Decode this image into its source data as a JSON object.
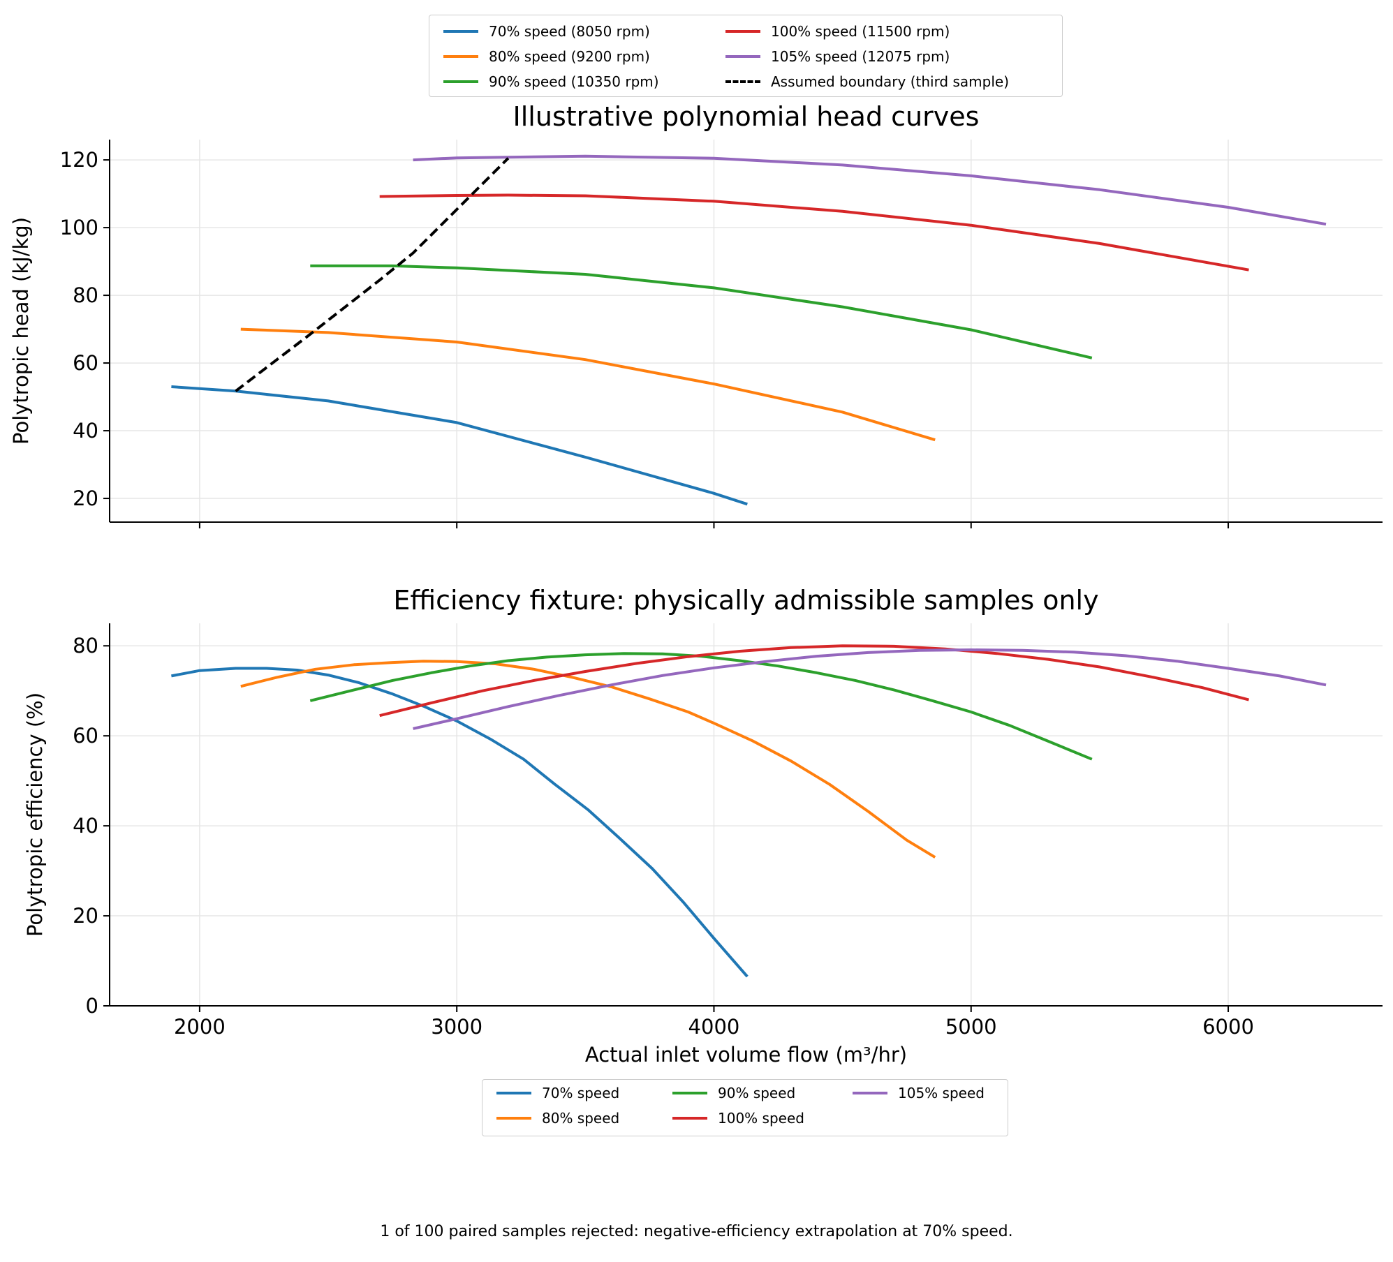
{
  "chart_data": [
    {
      "type": "line",
      "title": "Illustrative polynomial head curves",
      "xlabel": "",
      "ylabel": "Polytropic head (kJ/kg)",
      "xlim": [
        1650,
        6600
      ],
      "ylim": [
        13,
        126
      ],
      "xticks": [
        2000,
        3000,
        4000,
        5000,
        6000
      ],
      "yticks": [
        20,
        40,
        60,
        80,
        100,
        120
      ],
      "grid": true,
      "legend_position": "top-center, above plot",
      "series": [
        {
          "name": "70% speed (8050 rpm)",
          "color": "#1f77b4",
          "style": "solid",
          "x": [
            1890,
            2140,
            2500,
            3000,
            3500,
            4000,
            4130
          ],
          "y": [
            53,
            51.7,
            48.8,
            42.4,
            32.2,
            21.5,
            18.3
          ]
        },
        {
          "name": "80% speed (9200 rpm)",
          "color": "#ff7f0e",
          "style": "solid",
          "x": [
            2160,
            2500,
            3000,
            3500,
            4000,
            4500,
            4860
          ],
          "y": [
            70,
            69,
            66.2,
            61,
            53.8,
            45.5,
            37.3
          ]
        },
        {
          "name": "90% speed (10350 rpm)",
          "color": "#2ca02c",
          "style": "solid",
          "x": [
            2430,
            2750,
            3000,
            3500,
            4000,
            4500,
            5000,
            5470
          ],
          "y": [
            88.7,
            88.7,
            88.1,
            86.2,
            82.2,
            76.6,
            69.8,
            61.5
          ]
        },
        {
          "name": "100% speed (11500 rpm)",
          "color": "#d62728",
          "style": "solid",
          "x": [
            2700,
            3000,
            3200,
            3500,
            4000,
            4500,
            5000,
            5500,
            6080
          ],
          "y": [
            109.2,
            109.5,
            109.6,
            109.4,
            107.8,
            104.8,
            100.7,
            95.3,
            87.5
          ]
        },
        {
          "name": "105% speed (12075 rpm)",
          "color": "#9467bd",
          "style": "solid",
          "x": [
            2830,
            3000,
            3500,
            4000,
            4500,
            5000,
            5500,
            6000,
            6380
          ],
          "y": [
            120,
            120.6,
            121.1,
            120.5,
            118.5,
            115.3,
            111.2,
            106,
            101
          ]
        },
        {
          "name": "Assumed boundary (third sample)",
          "color": "#000000",
          "style": "dashed",
          "x": [
            2140,
            2430,
            2700,
            2830,
            3200
          ],
          "y": [
            51.7,
            68.5,
            84.5,
            92.5,
            120.5
          ]
        }
      ]
    },
    {
      "type": "line",
      "title": "Efficiency fixture: physically admissible samples only",
      "xlabel": "Actual inlet volume flow (m³/hr)",
      "ylabel": "Polytropic efficiency (%)",
      "xlim": [
        1650,
        6600
      ],
      "ylim": [
        0,
        85
      ],
      "xticks": [
        2000,
        3000,
        4000,
        5000,
        6000
      ],
      "xticklabels": [
        "2000",
        "3000",
        "4000",
        "5000",
        "6000"
      ],
      "yticks": [
        0,
        20,
        40,
        60,
        80
      ],
      "grid": true,
      "legend_position": "bottom-center, below plot",
      "series": [
        {
          "name": "70% speed",
          "color": "#1f77b4",
          "style": "solid",
          "x": [
            1890,
            2000,
            2140,
            2260,
            2380,
            2500,
            2620,
            2750,
            2870,
            3000,
            3130,
            3260,
            3380,
            3510,
            3630,
            3760,
            3880,
            4000,
            4130
          ],
          "y": [
            73.3,
            74.5,
            75,
            75,
            74.6,
            73.5,
            71.8,
            69.3,
            66.6,
            63.3,
            59.3,
            54.8,
            49.3,
            43.6,
            37.4,
            30.5,
            23.1,
            15,
            6.5
          ]
        },
        {
          "name": "80% speed",
          "color": "#ff7f0e",
          "style": "solid",
          "x": [
            2160,
            2300,
            2450,
            2600,
            2750,
            2870,
            3000,
            3150,
            3300,
            3450,
            3600,
            3750,
            3900,
            4000,
            4150,
            4300,
            4450,
            4600,
            4750,
            4860
          ],
          "y": [
            71,
            73,
            74.8,
            75.8,
            76.3,
            76.6,
            76.5,
            76,
            74.8,
            73,
            70.9,
            68.2,
            65.3,
            62.8,
            58.9,
            54.4,
            49.2,
            43.2,
            36.8,
            33
          ]
        },
        {
          "name": "90% speed",
          "color": "#2ca02c",
          "style": "solid",
          "x": [
            2430,
            2600,
            2750,
            2900,
            3050,
            3200,
            3350,
            3500,
            3650,
            3800,
            3950,
            4100,
            4250,
            4400,
            4550,
            4700,
            4850,
            5000,
            5150,
            5300,
            5470
          ],
          "y": [
            67.8,
            70.2,
            72.3,
            74,
            75.5,
            76.7,
            77.5,
            78,
            78.3,
            78.2,
            77.7,
            76.7,
            75.5,
            74,
            72.3,
            70.2,
            67.8,
            65.3,
            62.3,
            58.8,
            54.8
          ]
        },
        {
          "name": "100% speed",
          "color": "#d62728",
          "style": "solid",
          "x": [
            2700,
            2900,
            3100,
            3300,
            3500,
            3700,
            3900,
            4100,
            4300,
            4500,
            4700,
            4900,
            5100,
            5300,
            5500,
            5700,
            5900,
            6080
          ],
          "y": [
            64.5,
            67.3,
            70,
            72.3,
            74.3,
            76.1,
            77.6,
            78.8,
            79.6,
            80,
            79.9,
            79.3,
            78.3,
            77,
            75.3,
            73.1,
            70.7,
            68
          ]
        },
        {
          "name": "105% speed",
          "color": "#9467bd",
          "style": "solid",
          "x": [
            2830,
            3000,
            3200,
            3400,
            3600,
            3800,
            4000,
            4200,
            4400,
            4600,
            4800,
            5000,
            5200,
            5400,
            5600,
            5800,
            6000,
            6200,
            6380
          ],
          "y": [
            61.6,
            63.8,
            66.5,
            69,
            71.3,
            73.4,
            75.1,
            76.5,
            77.7,
            78.5,
            79,
            79.1,
            79,
            78.6,
            77.8,
            76.6,
            75,
            73.3,
            71.3
          ]
        }
      ]
    }
  ],
  "footer_note": "1 of 100 paired samples rejected: negative-efficiency extrapolation at 70% speed."
}
